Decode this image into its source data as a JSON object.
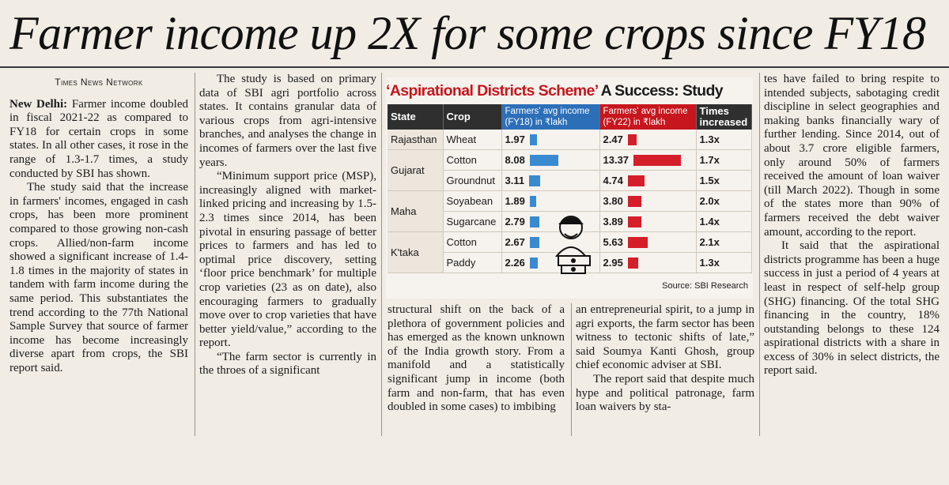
{
  "headline": "Farmer income up 2X for some crops since FY18",
  "byline": "Times News Network",
  "col1": {
    "dateline": "New Delhi:",
    "p1": " Farmer income doubled in fiscal 2021-22 as compared to FY18 for certain crops in some states. In all other cases, it rose in the range of 1.3-1.7 times, a study conducted by SBI has shown.",
    "p2": "The study said that the increase in farmers' incomes, engaged in cash crops, has been more prominent compared to those growing non-cash crops. Allied/non-farm income showed a significant increase of 1.4-1.8 times in the majority of states in tandem with farm income during the same period. This substantiates the trend according to the 77th National Sample Survey that source of farmer income has become increasingly diverse apart from crops, the SBI report said."
  },
  "col2": {
    "p1": "The study is based on primary data of SBI agri portfolio across states. It contains granular data of various crops from agri-intensive branches, and analyses the change in incomes of farmers over the last five years.",
    "p2": "“Minimum support price (MSP), increasingly aligned with market-linked pricing and increasing by 1.5-2.3 times since 2014, has been pivotal in ensuring passage of better prices to farmers and has led to optimal price discovery, setting ‘floor price benchmark’ for multiple crop varieties (23 as on date), also encouraging farmers to gradually move over to crop varieties that have better yield/value,” according to the report.",
    "p3": "“The farm sector is currently in the throes of a significant"
  },
  "col3": {
    "p1": "structural shift on the back of a plethora of government policies and has emerged as the known unknown of the India growth story. From a manifold and a statistically significant jump in income (both farm and non-farm, that has even doubled in some cases) to imbibing"
  },
  "col4": {
    "p1": "an entrepreneurial spirit, to a jump in agri exports, the farm sector has been witness to tectonic shifts of late,” said Soumya Kanti Ghosh, group chief economic adviser at SBI.",
    "p2": "The report said that despite much hype and political patronage, farm loan waivers by sta-"
  },
  "col5": {
    "p1": "tes have failed to bring respite to intended subjects, sabotaging credit discipline in select geographies and making banks financially wary of further lending. Since 2014, out of about 3.7 crore eligible farmers, only around 50% of farmers received the amount of loan waiver (till March 2022). Though in some of the states more than 90% of farmers received the debt waiver amount, according to the report.",
    "p2": "It said that the aspirational districts programme has been a huge success in just a period of 4 years at least in respect of self-help group (SHG) financing. Of the total SHG financing in the country, 18% outstanding belongs to these 124 aspirational districts with a share in excess of 30% in select districts, the report said."
  },
  "box": {
    "title_red": "‘Aspirational Districts Scheme’",
    "title_black": " A Success: Study",
    "headers": {
      "state": "State",
      "crop": "Crop",
      "fy18": "Farmers' avg income (FY18) in ₹lakh",
      "fy22": "Farmers' avg income (FY22) in ₹lakh",
      "times": "Times increased"
    },
    "rows": [
      {
        "state": "Rajasthan",
        "crop": "Wheat",
        "fy18": "1.97",
        "fy22": "2.47",
        "times": "1.3x"
      },
      {
        "state": "Gujarat",
        "crop": "Cotton",
        "fy18": "8.08",
        "fy22": "13.37",
        "times": "1.7x"
      },
      {
        "state": "",
        "crop": "Groundnut",
        "fy18": "3.11",
        "fy22": "4.74",
        "times": "1.5x"
      },
      {
        "state": "Maha",
        "crop": "Soyabean",
        "fy18": "1.89",
        "fy22": "3.80",
        "times": "2.0x"
      },
      {
        "state": "",
        "crop": "Sugarcane",
        "fy18": "2.79",
        "fy22": "3.89",
        "times": "1.4x"
      },
      {
        "state": "K'taka",
        "crop": "Cotton",
        "fy18": "2.67",
        "fy22": "5.63",
        "times": "2.1x"
      },
      {
        "state": "",
        "crop": "Paddy",
        "fy18": "2.26",
        "fy22": "2.95",
        "times": "1.3x"
      }
    ],
    "source": "Source: SBI Research",
    "colors": {
      "fy18": "#3a8ad2",
      "fy22": "#d41f2a",
      "title_red": "#c7161d"
    }
  }
}
